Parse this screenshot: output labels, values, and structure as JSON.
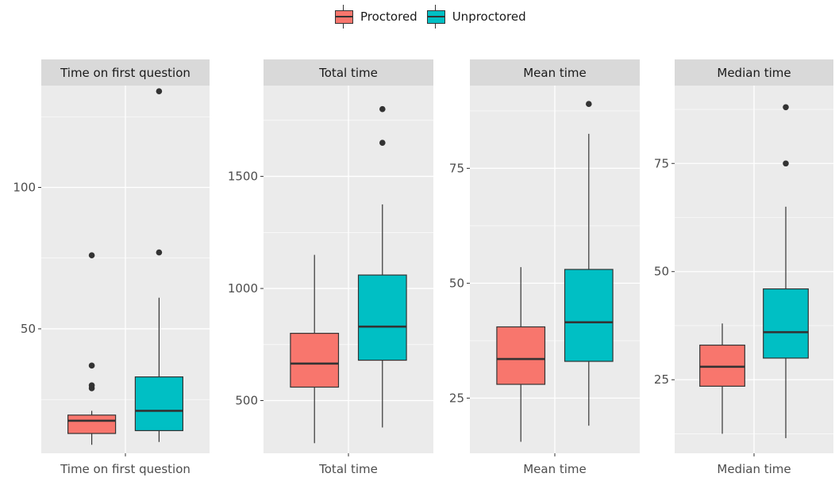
{
  "legend": {
    "position": "top",
    "items": [
      {
        "label": "Proctored",
        "color": "#F8766D"
      },
      {
        "label": "Unproctored",
        "color": "#00BFC4"
      }
    ]
  },
  "chart_data": [
    {
      "type": "box",
      "strip_title": "Time on first question",
      "xlabel": "Time on first question",
      "ylim": [
        6,
        136
      ],
      "yticks": [
        50,
        100
      ],
      "grid": true,
      "series": [
        {
          "name": "Proctored",
          "color": "#F8766D",
          "whisker_low": 9,
          "q1": 13,
          "median": 17.5,
          "q3": 19.5,
          "whisker_high": 21,
          "outliers": [
            29,
            30,
            37,
            76
          ]
        },
        {
          "name": "Unproctored",
          "color": "#00BFC4",
          "whisker_low": 10,
          "q1": 14,
          "median": 21,
          "q3": 33,
          "whisker_high": 61,
          "outliers": [
            77,
            134
          ]
        }
      ]
    },
    {
      "type": "box",
      "strip_title": "Total time",
      "xlabel": "Total time",
      "ylim": [
        265,
        1905
      ],
      "yticks": [
        500,
        1000,
        1500
      ],
      "grid": true,
      "series": [
        {
          "name": "Proctored",
          "color": "#F8766D",
          "whisker_low": 310,
          "q1": 560,
          "median": 665,
          "q3": 800,
          "whisker_high": 1150,
          "outliers": []
        },
        {
          "name": "Unproctored",
          "color": "#00BFC4",
          "whisker_low": 380,
          "q1": 680,
          "median": 830,
          "q3": 1060,
          "whisker_high": 1375,
          "outliers": [
            1650,
            1800
          ]
        }
      ]
    },
    {
      "type": "box",
      "strip_title": "Mean time",
      "xlabel": "Mean time",
      "ylim": [
        13,
        93
      ],
      "yticks": [
        25,
        50,
        75
      ],
      "grid": true,
      "series": [
        {
          "name": "Proctored",
          "color": "#F8766D",
          "whisker_low": 15.5,
          "q1": 28,
          "median": 33.5,
          "q3": 40.5,
          "whisker_high": 53.5,
          "outliers": []
        },
        {
          "name": "Unproctored",
          "color": "#00BFC4",
          "whisker_low": 19,
          "q1": 33,
          "median": 41.5,
          "q3": 53,
          "whisker_high": 82.5,
          "outliers": [
            89
          ]
        }
      ]
    },
    {
      "type": "box",
      "strip_title": "Median time",
      "xlabel": "Median time",
      "ylim": [
        8,
        93
      ],
      "yticks": [
        25,
        50,
        75
      ],
      "grid": true,
      "series": [
        {
          "name": "Proctored",
          "color": "#F8766D",
          "whisker_low": 12.5,
          "q1": 23.5,
          "median": 28,
          "q3": 33,
          "whisker_high": 38,
          "outliers": []
        },
        {
          "name": "Unproctored",
          "color": "#00BFC4",
          "whisker_low": 11.5,
          "q1": 30,
          "median": 36,
          "q3": 46,
          "whisker_high": 65,
          "outliers": [
            75,
            88
          ]
        }
      ]
    }
  ]
}
